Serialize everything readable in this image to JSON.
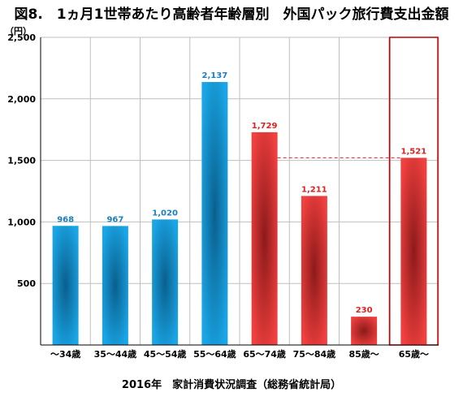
{
  "chart_data": {
    "type": "bar",
    "title": "図8.　1ヵ月1世帯あたり高齢者年齢層別　外国パック旅行費支出金額",
    "y_unit": "（円）",
    "source": "2016年　家計消費状況調査（総務省統計局）",
    "categories": [
      "～34歳",
      "35～44歳",
      "45～54歳",
      "55～64歳",
      "65～74歳",
      "75～84歳",
      "85歳～",
      "65歳～"
    ],
    "values": [
      968,
      967,
      1020,
      2137,
      1729,
      1211,
      230,
      1521
    ],
    "data_labels": [
      "968",
      "967",
      "1,020",
      "2,137",
      "1,729",
      "1,211",
      "230",
      "1,521"
    ],
    "y_ticks": [
      "500",
      "1,000",
      "1,500",
      "2,000",
      "2,500"
    ],
    "y_tick_values": [
      500,
      1000,
      1500,
      2000,
      2500
    ],
    "ylim": [
      0,
      2500
    ],
    "grid": true,
    "highlighted_category": "65歳～",
    "reference_line_value": 1521,
    "colors": {
      "under_65": "#1aa6e6",
      "under_65_dark": "#0a5f8c",
      "over_65": "#f0403f",
      "over_65_dark": "#8c1a1a",
      "label_under_65": "#1a7fc0",
      "label_over_65": "#e02020",
      "highlight_box": "#c00000"
    }
  }
}
